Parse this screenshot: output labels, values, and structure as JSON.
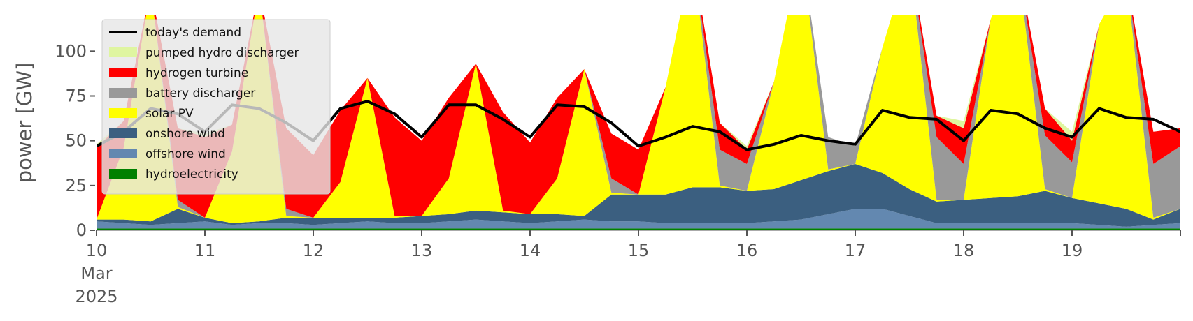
{
  "chart_data": {
    "type": "area",
    "ylabel": "power [GW]",
    "ylim": [
      0,
      120
    ],
    "xlim": [
      "2025-03-10T00:00",
      "2025-03-20T00:00"
    ],
    "y_ticks": [
      0,
      25,
      50,
      75,
      100
    ],
    "x_ticks": [
      "10",
      "11",
      "12",
      "13",
      "14",
      "15",
      "16",
      "17",
      "18",
      "19"
    ],
    "x_tick_sub": [
      "Mar",
      "2025"
    ],
    "grid": false,
    "legend_position": "upper-left",
    "x": [
      "2025-03-10T00:00",
      "2025-03-10T06:00",
      "2025-03-10T12:00",
      "2025-03-10T18:00",
      "2025-03-11T00:00",
      "2025-03-11T06:00",
      "2025-03-11T12:00",
      "2025-03-11T18:00",
      "2025-03-12T00:00",
      "2025-03-12T06:00",
      "2025-03-12T12:00",
      "2025-03-12T18:00",
      "2025-03-13T00:00",
      "2025-03-13T06:00",
      "2025-03-13T12:00",
      "2025-03-13T18:00",
      "2025-03-14T00:00",
      "2025-03-14T06:00",
      "2025-03-14T12:00",
      "2025-03-14T18:00",
      "2025-03-15T00:00",
      "2025-03-15T06:00",
      "2025-03-15T12:00",
      "2025-03-15T18:00",
      "2025-03-16T00:00",
      "2025-03-16T06:00",
      "2025-03-16T12:00",
      "2025-03-16T18:00",
      "2025-03-17T00:00",
      "2025-03-17T06:00",
      "2025-03-17T12:00",
      "2025-03-17T18:00",
      "2025-03-18T00:00",
      "2025-03-18T06:00",
      "2025-03-18T12:00",
      "2025-03-18T18:00",
      "2025-03-19T00:00",
      "2025-03-19T06:00",
      "2025-03-19T12:00",
      "2025-03-19T18:00",
      "2025-03-20T00:00"
    ],
    "series": [
      {
        "name": "hydroelectricity",
        "color": "#008000",
        "values": [
          1,
          1,
          1,
          1,
          1,
          1,
          1,
          1,
          1,
          1,
          1,
          1,
          1,
          1,
          1,
          1,
          1,
          1,
          1,
          1,
          1,
          1,
          1,
          1,
          1,
          1,
          1,
          1,
          1,
          1,
          1,
          1,
          1,
          1,
          1,
          1,
          1,
          1,
          1,
          1,
          1
        ]
      },
      {
        "name": "offshore wind",
        "color": "#6388b0",
        "values": [
          4,
          3,
          2,
          3,
          4,
          2,
          3,
          3,
          2,
          3,
          4,
          3,
          3,
          4,
          5,
          4,
          3,
          4,
          5,
          4,
          4,
          3,
          3,
          3,
          3,
          4,
          5,
          8,
          11,
          11,
          7,
          3,
          3,
          3,
          3,
          3,
          3,
          2,
          1,
          2,
          3
        ]
      },
      {
        "name": "onshore wind",
        "color": "#3b5f80",
        "values": [
          1,
          2,
          2,
          8,
          2,
          1,
          1,
          3,
          4,
          3,
          2,
          3,
          4,
          4,
          5,
          5,
          5,
          4,
          2,
          15,
          15,
          16,
          20,
          20,
          18,
          18,
          22,
          24,
          25,
          20,
          15,
          12,
          13,
          14,
          15,
          18,
          14,
          12,
          10,
          3,
          8
        ]
      },
      {
        "name": "solar PV",
        "color": "#ffff00",
        "values": [
          0,
          40,
          130,
          1,
          0,
          40,
          130,
          1,
          0,
          20,
          78,
          1,
          0,
          20,
          82,
          1,
          0,
          20,
          82,
          1,
          0,
          60,
          130,
          1,
          0,
          60,
          130,
          1,
          0,
          70,
          130,
          1,
          0,
          100,
          130,
          1,
          0,
          100,
          130,
          1,
          0
        ]
      },
      {
        "name": "battery discharger",
        "color": "#999999",
        "values": [
          0,
          0,
          0,
          4,
          0,
          0,
          0,
          4,
          0,
          0,
          0,
          0,
          0,
          0,
          0,
          0,
          0,
          0,
          0,
          8,
          0,
          0,
          0,
          20,
          15,
          0,
          0,
          18,
          10,
          0,
          0,
          35,
          20,
          0,
          0,
          30,
          20,
          0,
          0,
          30,
          35
        ]
      },
      {
        "name": "hydrogen turbine",
        "color": "#ff0000",
        "values": [
          40,
          15,
          0,
          40,
          45,
          15,
          0,
          45,
          35,
          40,
          0,
          55,
          42,
          45,
          0,
          55,
          40,
          45,
          0,
          25,
          25,
          0,
          0,
          15,
          8,
          0,
          0,
          0,
          0,
          0,
          0,
          12,
          20,
          0,
          0,
          15,
          12,
          0,
          0,
          18,
          10
        ]
      },
      {
        "name": "pumped hydro discharger",
        "color": "#dff5a0",
        "values": [
          2,
          0,
          0,
          0,
          2,
          0,
          0,
          0,
          0,
          0,
          0,
          0,
          0,
          0,
          0,
          0,
          0,
          0,
          0,
          0,
          0,
          0,
          0,
          0,
          2,
          0,
          0,
          0,
          0,
          0,
          0,
          0,
          4,
          0,
          0,
          0,
          5,
          0,
          0,
          0,
          0
        ]
      }
    ],
    "demand": {
      "name": "today's demand",
      "color": "#000000",
      "values": [
        47,
        55,
        68,
        65,
        55,
        70,
        68,
        60,
        50,
        68,
        72,
        65,
        52,
        70,
        70,
        62,
        52,
        70,
        69,
        60,
        47,
        52,
        58,
        55,
        45,
        48,
        53,
        50,
        48,
        67,
        63,
        62,
        50,
        67,
        65,
        57,
        52,
        68,
        63,
        62,
        55
      ]
    },
    "legend": [
      "today's demand",
      "pumped hydro discharger",
      "hydrogen turbine",
      "battery discharger",
      "solar PV",
      "onshore wind",
      "offshore wind",
      "hydroelectricity"
    ]
  }
}
